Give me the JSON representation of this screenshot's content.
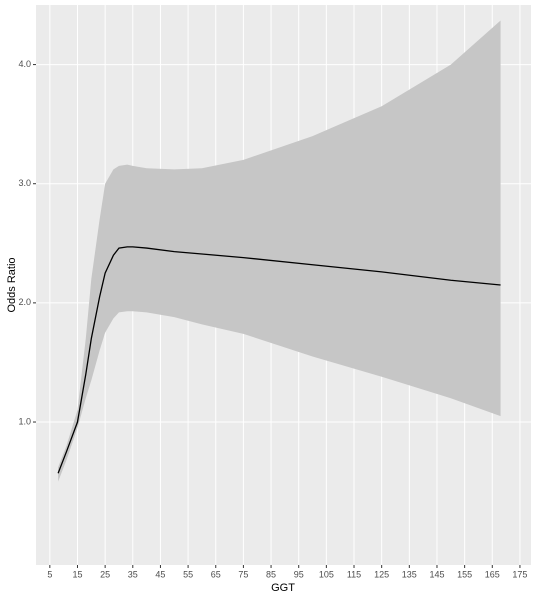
{
  "chart_data": {
    "type": "ribbon-line",
    "x_label": "GGT",
    "y_label": "Odds Ratio",
    "x": [
      8,
      11,
      15,
      18,
      20,
      23,
      25,
      28,
      30,
      33,
      35,
      40,
      50,
      60,
      75,
      100,
      125,
      150,
      168
    ],
    "values": [
      0.57,
      0.75,
      1.0,
      1.4,
      1.7,
      2.05,
      2.25,
      2.4,
      2.46,
      2.47,
      2.47,
      2.46,
      2.43,
      2.41,
      2.38,
      2.32,
      2.26,
      2.19,
      2.15
    ],
    "upper": [
      0.62,
      0.8,
      1.1,
      1.7,
      2.2,
      2.7,
      3.0,
      3.12,
      3.15,
      3.16,
      3.15,
      3.13,
      3.12,
      3.13,
      3.2,
      3.4,
      3.65,
      4.0,
      4.37
    ],
    "lower": [
      0.5,
      0.68,
      0.95,
      1.2,
      1.35,
      1.6,
      1.75,
      1.87,
      1.92,
      1.93,
      1.93,
      1.92,
      1.88,
      1.82,
      1.74,
      1.55,
      1.38,
      1.2,
      1.05
    ],
    "line_color": "#000000",
    "ribbon_color": "#c6c6c6",
    "background": "#ebebeb",
    "xlim": [
      0,
      179
    ],
    "ylim": [
      -0.2,
      4.5
    ],
    "xticks": [
      5,
      15,
      25,
      35,
      45,
      55,
      65,
      75,
      85,
      95,
      105,
      115,
      125,
      135,
      145,
      155,
      165,
      175
    ],
    "yticks": [
      {
        "value": 1,
        "label": "1.0"
      },
      {
        "value": 2,
        "label": "2.0"
      },
      {
        "value": 3,
        "label": "3.0"
      },
      {
        "value": 4,
        "label": "4.0"
      }
    ],
    "grid": true
  }
}
